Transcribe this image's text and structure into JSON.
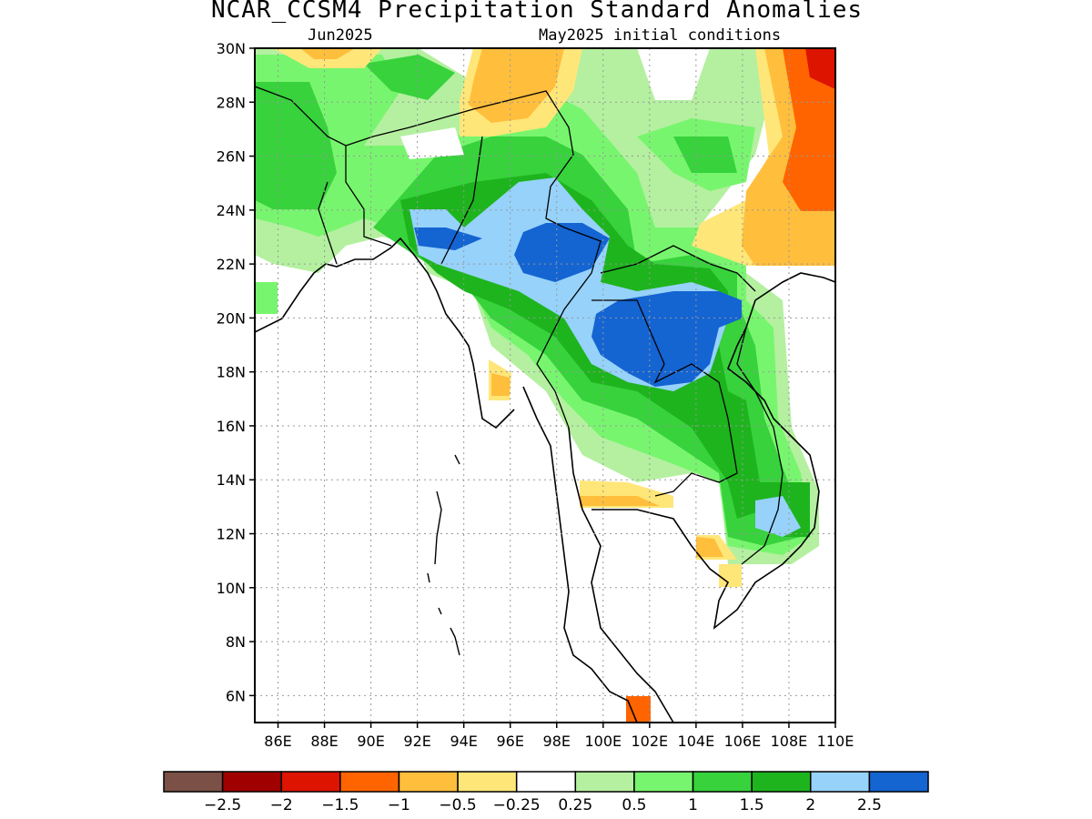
{
  "title": "NCAR_CCSM4 Precipitation Standard Anomalies",
  "subtitle_left": "Jun2025",
  "subtitle_right": "May2025 initial conditions",
  "map": {
    "lon_range": [
      85,
      110
    ],
    "lat_range": [
      5,
      30
    ],
    "lat_ticks": [
      "6N",
      "8N",
      "10N",
      "12N",
      "14N",
      "16N",
      "18N",
      "20N",
      "22N",
      "24N",
      "26N",
      "28N",
      "30N"
    ],
    "lon_ticks": [
      "86E",
      "88E",
      "90E",
      "92E",
      "94E",
      "96E",
      "98E",
      "100E",
      "102E",
      "104E",
      "106E",
      "108E",
      "110E"
    ],
    "grid": "dotted"
  },
  "colorbar": {
    "colors": [
      "#7b5046",
      "#a00000",
      "#dc1400",
      "#ff6400",
      "#ffbe3c",
      "#ffe678",
      "#ffffff",
      "#b4f0a0",
      "#78f56e",
      "#37d23c",
      "#1eb41e",
      "#96d2fa",
      "#1464d2"
    ],
    "labels": [
      "-2.5",
      "-2",
      "-1.5",
      "-1",
      "-0.5",
      "-0.25",
      "0.25",
      "0.5",
      "1",
      "1.5",
      "2",
      "2.5"
    ]
  }
}
